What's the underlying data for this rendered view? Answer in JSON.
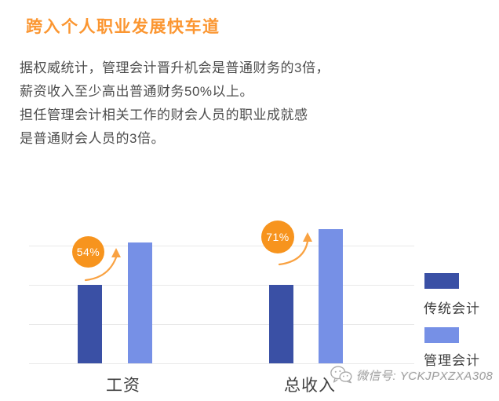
{
  "title": "跨入个人职业发展快车道",
  "intro": {
    "lines": [
      "据权威统计，管理会计晋升机会是普通财务的3倍，",
      "薪资收入至少高出普通财务50%以上。",
      "担任管理会计相关工作的财会人员的职业成就感",
      "是普通财会人员的3倍。"
    ]
  },
  "chart_data": {
    "type": "bar",
    "title": "",
    "xlabel": "",
    "ylabel": "",
    "categories": [
      "工资",
      "总收入"
    ],
    "series": [
      {
        "name": "传统会计",
        "color": "#3A50A5",
        "values": [
          100,
          100
        ]
      },
      {
        "name": "管理会计",
        "color": "#7690E6",
        "values": [
          154,
          171
        ]
      }
    ],
    "annotations": [
      "54%",
      "71%"
    ],
    "grid": "horizontal",
    "gridline_values": [
      0,
      50,
      100,
      150
    ],
    "ylim": [
      0,
      185
    ],
    "axis_tick_labels_visible": false,
    "legend_position": "right"
  },
  "watermark": {
    "icon": "wechat-icon",
    "label": "微信号: YCKJPXZXA308"
  },
  "colors": {
    "title_orange": "#FB9631",
    "badge_orange": "#F7941E",
    "arrow_orange": "#F9A242",
    "traditional_blue": "#3A50A5",
    "management_blue": "#7690E6",
    "gridline_gray": "#E9E9E9",
    "body_text_gray": "#4D4D4D",
    "watermark_gray": "#9E9E9E"
  }
}
